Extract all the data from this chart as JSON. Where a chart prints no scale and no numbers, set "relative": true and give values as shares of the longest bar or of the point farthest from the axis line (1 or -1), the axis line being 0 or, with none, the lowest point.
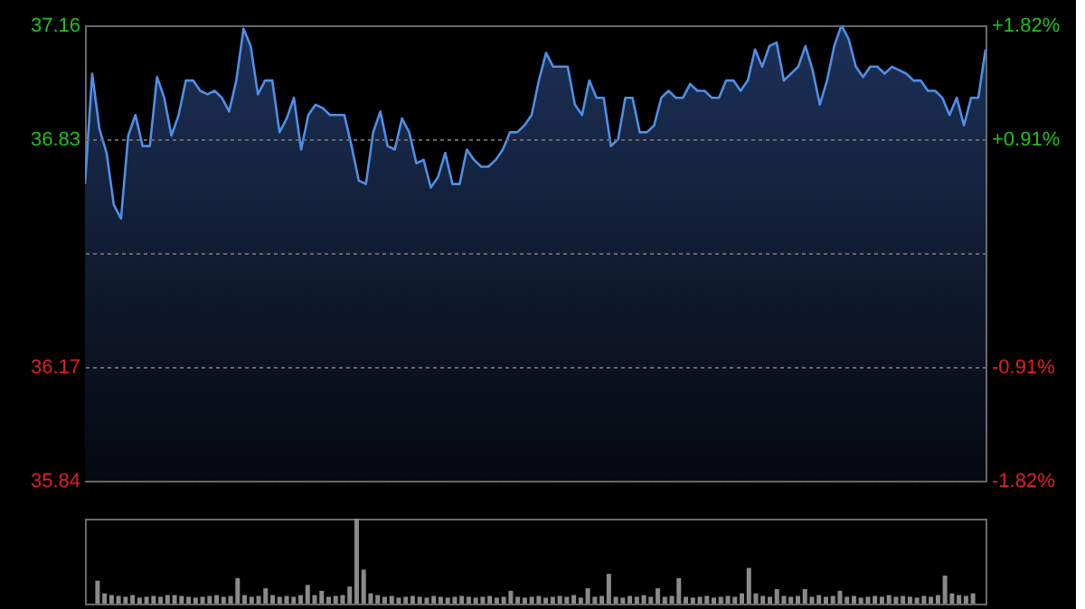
{
  "chart_data": [
    {
      "type": "area",
      "categories": [
        null,
        null,
        null,
        null,
        null,
        null,
        null,
        null,
        null,
        null,
        null,
        null,
        null,
        null,
        null,
        null,
        null,
        null,
        null,
        null,
        null,
        null,
        null,
        null,
        null,
        null,
        null,
        null,
        null,
        null,
        null,
        null,
        null,
        null,
        null,
        null,
        null,
        null,
        null,
        null,
        null,
        null,
        null,
        null,
        null,
        null,
        null,
        null,
        null,
        null,
        null,
        null,
        null,
        null,
        null,
        null,
        null,
        null,
        null,
        null,
        null,
        null,
        null,
        null,
        null,
        null,
        null,
        null,
        null,
        null,
        null,
        null,
        null,
        null,
        null,
        null,
        null,
        null,
        null,
        null,
        null,
        null,
        null,
        null,
        null,
        null,
        null,
        null,
        null,
        null,
        null,
        null,
        null,
        null,
        null,
        null,
        null,
        null,
        null,
        null,
        null,
        null,
        null,
        null,
        null,
        null,
        null,
        null,
        null,
        null,
        null,
        null,
        null,
        null,
        null,
        null,
        null,
        null,
        null,
        null,
        null,
        null,
        null,
        null,
        null,
        null
      ],
      "series": [
        {
          "color": "#4f8fe6",
          "values": [
            36.7,
            37.02,
            36.86,
            36.79,
            36.64,
            36.6,
            36.84,
            36.9,
            36.81,
            36.81,
            37.01,
            36.95,
            36.84,
            36.9,
            37.0,
            37.0,
            36.97,
            36.96,
            36.97,
            36.95,
            36.91,
            37.0,
            37.15,
            37.1,
            36.96,
            37.0,
            37.0,
            36.85,
            36.89,
            36.95,
            36.8,
            36.9,
            36.93,
            36.92,
            36.9,
            36.9,
            36.9,
            36.81,
            36.71,
            36.7,
            36.85,
            36.91,
            36.81,
            36.8,
            36.89,
            36.85,
            36.76,
            36.77,
            36.69,
            36.72,
            36.79,
            36.7,
            36.7,
            36.8,
            36.77,
            36.75,
            36.75,
            36.77,
            36.8,
            36.85,
            36.85,
            36.87,
            36.9,
            37.0,
            37.08,
            37.04,
            37.04,
            37.04,
            36.93,
            36.9,
            37.0,
            36.95,
            36.95,
            36.81,
            36.83,
            36.95,
            36.95,
            36.85,
            36.85,
            36.87,
            36.95,
            36.97,
            36.95,
            36.95,
            36.99,
            36.97,
            36.97,
            36.95,
            36.95,
            37.0,
            37.0,
            36.97,
            37.0,
            37.09,
            37.04,
            37.1,
            37.11,
            37.0,
            37.02,
            37.04,
            37.1,
            37.03,
            36.93,
            37.0,
            37.1,
            37.16,
            37.12,
            37.04,
            37.01,
            37.04,
            37.04,
            37.02,
            37.04,
            37.03,
            37.02,
            37.0,
            37.0,
            36.97,
            36.97,
            36.95,
            36.9,
            36.95,
            36.87,
            36.95,
            36.95,
            37.09
          ]
        }
      ],
      "ylim": [
        35.84,
        37.16
      ],
      "yticks": [
        35.84,
        36.17,
        {
          "value": 36.5,
          "label": null
        },
        36.83,
        37.16
      ],
      "y2lim": [
        -1.82,
        1.82
      ],
      "y2ticks": [
        {
          "value": -1.82,
          "label": "-1.82%"
        },
        {
          "value": -0.91,
          "label": "-0.91%"
        },
        {
          "value": 0.91,
          "label": "+0.91%"
        },
        {
          "value": 1.82,
          "label": "+1.82%"
        }
      ],
      "grid": true
    },
    {
      "type": "bar",
      "relative": true,
      "color": "#8a8a8a",
      "categories": [
        null,
        null,
        null,
        null,
        null,
        null,
        null,
        null,
        null,
        null,
        null,
        null,
        null,
        null,
        null,
        null,
        null,
        null,
        null,
        null,
        null,
        null,
        null,
        null,
        null,
        null,
        null,
        null,
        null,
        null,
        null,
        null,
        null,
        null,
        null,
        null,
        null,
        null,
        null,
        null,
        null,
        null,
        null,
        null,
        null,
        null,
        null,
        null,
        null,
        null,
        null,
        null,
        null,
        null,
        null,
        null,
        null,
        null,
        null,
        null,
        null,
        null,
        null,
        null,
        null,
        null,
        null,
        null,
        null,
        null,
        null,
        null,
        null,
        null,
        null,
        null,
        null,
        null,
        null,
        null,
        null,
        null,
        null,
        null,
        null,
        null,
        null,
        null,
        null,
        null,
        null,
        null,
        null,
        null,
        null,
        null,
        null,
        null,
        null,
        null,
        null,
        null,
        null,
        null,
        null,
        null,
        null,
        null,
        null,
        null,
        null,
        null,
        null,
        null,
        null,
        null,
        null,
        null,
        null,
        null,
        null,
        null,
        null,
        null,
        null,
        null
      ],
      "values": [
        0.27,
        0.12,
        0.1,
        0.09,
        0.08,
        0.1,
        0.07,
        0.08,
        0.09,
        0.08,
        0.1,
        0.1,
        0.09,
        0.08,
        0.07,
        0.08,
        0.09,
        0.1,
        0.08,
        0.09,
        0.3,
        0.1,
        0.08,
        0.09,
        0.18,
        0.1,
        0.08,
        0.09,
        0.08,
        0.1,
        0.22,
        0.1,
        0.15,
        0.08,
        0.09,
        0.1,
        0.2,
        1.0,
        0.4,
        0.12,
        0.1,
        0.08,
        0.09,
        0.07,
        0.08,
        0.09,
        0.08,
        0.07,
        0.09,
        0.08,
        0.07,
        0.08,
        0.09,
        0.08,
        0.07,
        0.08,
        0.09,
        0.07,
        0.08,
        0.15,
        0.08,
        0.07,
        0.08,
        0.09,
        0.07,
        0.08,
        0.09,
        0.08,
        0.1,
        0.07,
        0.18,
        0.08,
        0.09,
        0.35,
        0.08,
        0.07,
        0.09,
        0.08,
        0.1,
        0.08,
        0.18,
        0.08,
        0.09,
        0.3,
        0.08,
        0.07,
        0.08,
        0.09,
        0.07,
        0.08,
        0.09,
        0.08,
        0.12,
        0.42,
        0.12,
        0.09,
        0.08,
        0.17,
        0.09,
        0.08,
        0.09,
        0.17,
        0.08,
        0.1,
        0.08,
        0.09,
        0.15,
        0.08,
        0.09,
        0.07,
        0.08,
        0.09,
        0.08,
        0.1,
        0.08,
        0.09,
        0.08,
        0.07,
        0.09,
        0.08,
        0.1,
        0.33,
        0.12,
        0.1,
        0.09,
        0.12
      ]
    }
  ]
}
